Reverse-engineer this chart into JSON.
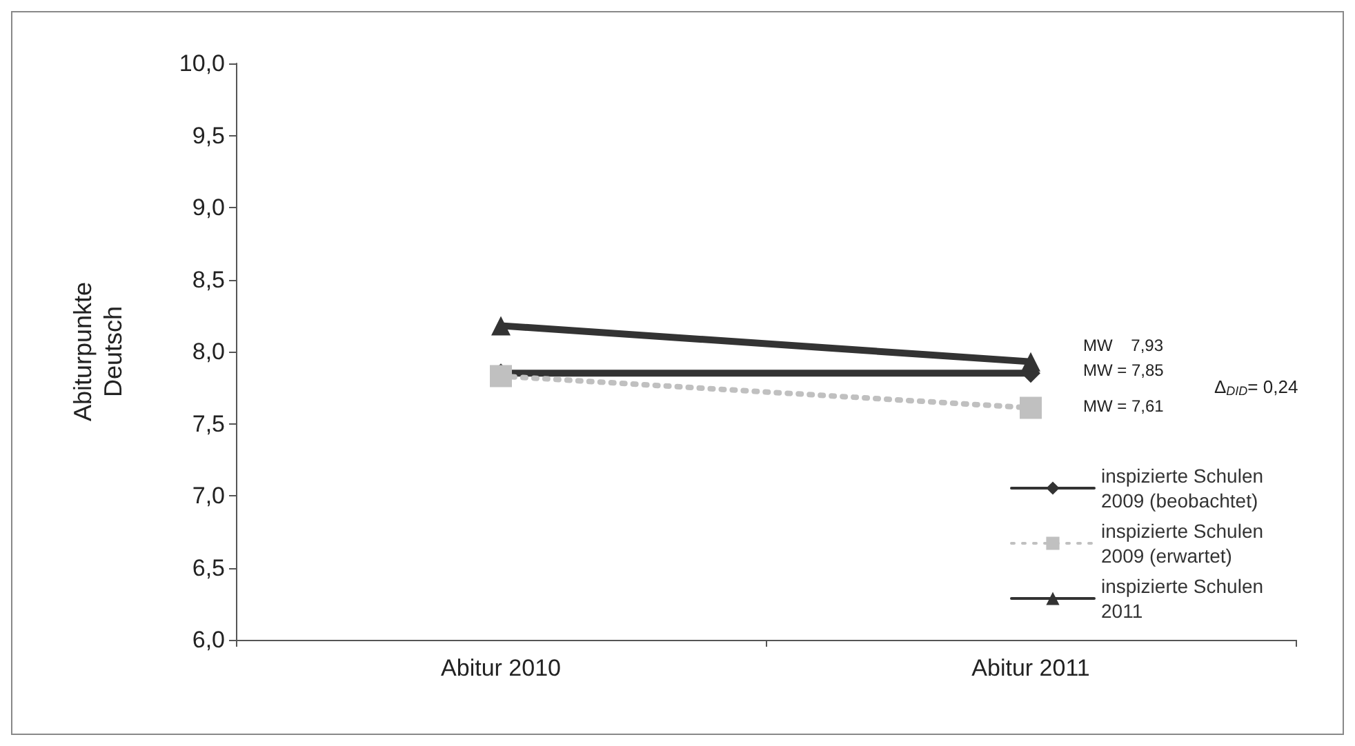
{
  "chart_data": {
    "type": "line",
    "ylabel": "Abiturpunkte Deutsch",
    "categories": [
      "Abitur 2010",
      "Abitur 2011"
    ],
    "series": [
      {
        "name": "inspizierte Schulen 2009 (beobachtet)",
        "color": "#333333",
        "values": [
          7.85,
          7.85
        ],
        "marker": "diamond",
        "line_style": "solid"
      },
      {
        "name": "inspizierte Schulen 2009 (erwartet)",
        "color": "#c0c0c0",
        "values": [
          7.83,
          7.61
        ],
        "marker": "square",
        "line_style": "dotted"
      },
      {
        "name": "inspizierte Schulen 2011",
        "color": "#333333",
        "values": [
          8.18,
          7.93
        ],
        "marker": "triangle",
        "line_style": "solid"
      }
    ],
    "ylim": [
      6,
      10
    ],
    "yticks": [
      {
        "value": 6,
        "label": "6,0"
      },
      {
        "value": 6.5,
        "label": "6,5"
      },
      {
        "value": 7,
        "label": "7,0"
      },
      {
        "value": 7.5,
        "label": "7,5"
      },
      {
        "value": 8,
        "label": "8,0"
      },
      {
        "value": 8.5,
        "label": "8,5"
      },
      {
        "value": 9,
        "label": "9,0"
      },
      {
        "value": 9.5,
        "label": "9,5"
      },
      {
        "value": 10,
        "label": "10,0"
      }
    ],
    "grid": false,
    "legend": "bottom right",
    "annotations": [
      "MW    7,93",
      "MW = 7,85",
      "MW = 7,61",
      "Δ$_{DID}$= 0,24"
    ]
  }
}
